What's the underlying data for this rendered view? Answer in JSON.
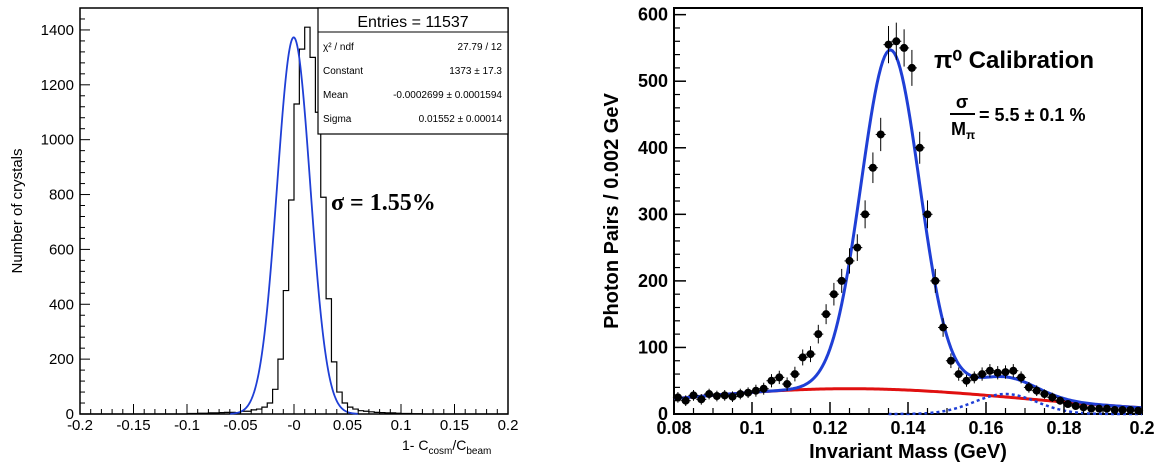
{
  "chart_data": [
    {
      "type": "histogram",
      "ylabel": "Number of crystals",
      "xlabel": {
        "prefix": "1- C",
        "sub1": "cosm",
        "mid": "/C",
        "sub2": "beam"
      },
      "xlim": [
        -0.2,
        0.2
      ],
      "ylim": [
        0,
        1480
      ],
      "x_ticks": [
        -0.2,
        -0.15,
        -0.1,
        -0.05,
        0,
        0.05,
        0.1,
        0.15,
        0.2
      ],
      "x_tick_labels": [
        "-0.2",
        "-0.15",
        "-0.1",
        "-0.05",
        "-0",
        "0.05",
        "0.1",
        "0.15",
        "0.2"
      ],
      "y_ticks": [
        0,
        200,
        400,
        600,
        800,
        1000,
        1200,
        1400
      ],
      "y_tick_labels": [
        "0",
        "200",
        "400",
        "600",
        "800",
        "1000",
        "1200",
        "1400"
      ],
      "stats_box": {
        "title": "Entries = 11537",
        "rows": [
          {
            "label": "χ² / ndf",
            "value": "27.79 / 12"
          },
          {
            "label": "Constant",
            "value": "1373 ± 17.3"
          },
          {
            "label": "Mean",
            "value": "-0.0002699 ± 0.0001594"
          },
          {
            "label": "Sigma",
            "value": "0.01552 ± 0.00014"
          }
        ]
      },
      "annotation": "σ = 1.55%",
      "fit": {
        "constant": 1373,
        "mean": -0.0002699,
        "sigma": 0.01552
      },
      "bin_width": 0.005,
      "bin_start": -0.2,
      "bin_values": [
        0,
        0,
        0,
        0,
        0,
        0,
        0,
        0,
        0,
        0,
        0,
        0,
        0,
        0,
        0,
        0,
        0,
        0,
        0,
        0,
        2,
        2,
        3,
        3,
        4,
        4,
        5,
        6,
        6,
        5,
        10,
        10,
        15,
        18,
        25,
        40,
        90,
        200,
        450,
        780,
        1130,
        1330,
        1410,
        1300,
        1100,
        790,
        420,
        190,
        80,
        40,
        25,
        18,
        12,
        10,
        8,
        6,
        5,
        4,
        4,
        3,
        2,
        2,
        1,
        1,
        0,
        0,
        0,
        0,
        0,
        0,
        0,
        0,
        0,
        0,
        0,
        0,
        0,
        0,
        0,
        0
      ],
      "colors": {
        "histogram": "#000000",
        "fit": "#1f3fd6"
      }
    },
    {
      "type": "scatter",
      "title": "π⁰ Calibration",
      "ylabel": "Photon Pairs / 0.002 GeV",
      "xlabel": "Invariant Mass (GeV)",
      "xlim": [
        0.08,
        0.2
      ],
      "ylim": [
        0,
        610
      ],
      "x_ticks": [
        0.08,
        0.1,
        0.12,
        0.14,
        0.16,
        0.18,
        0.2
      ],
      "x_tick_labels": [
        "0.08",
        "0.1",
        "0.12",
        "0.14",
        "0.16",
        "0.18",
        "0.2"
      ],
      "y_ticks": [
        0,
        100,
        200,
        300,
        400,
        500,
        600
      ],
      "y_tick_labels": [
        "0",
        "100",
        "200",
        "300",
        "400",
        "500",
        "600"
      ],
      "annotation": {
        "numerator": "σ",
        "denominator": "M",
        "denominator_sub": "π",
        "rhs": "= 5.5 ± 0.1 %"
      },
      "points": {
        "x": [
          0.081,
          0.083,
          0.085,
          0.087,
          0.089,
          0.091,
          0.093,
          0.095,
          0.097,
          0.099,
          0.101,
          0.103,
          0.105,
          0.107,
          0.109,
          0.111,
          0.113,
          0.115,
          0.117,
          0.119,
          0.121,
          0.123,
          0.125,
          0.127,
          0.129,
          0.131,
          0.133,
          0.135,
          0.137,
          0.139,
          0.141,
          0.143,
          0.145,
          0.147,
          0.149,
          0.151,
          0.153,
          0.155,
          0.157,
          0.159,
          0.161,
          0.163,
          0.165,
          0.167,
          0.169,
          0.171,
          0.173,
          0.175,
          0.177,
          0.179,
          0.181,
          0.183,
          0.185,
          0.187,
          0.189,
          0.191,
          0.193,
          0.195,
          0.197,
          0.199
        ],
        "y": [
          25,
          20,
          28,
          22,
          30,
          27,
          28,
          26,
          30,
          32,
          35,
          38,
          50,
          55,
          45,
          60,
          85,
          90,
          120,
          150,
          180,
          200,
          230,
          250,
          300,
          370,
          420,
          555,
          560,
          550,
          520,
          400,
          300,
          200,
          130,
          80,
          60,
          50,
          55,
          60,
          65,
          62,
          63,
          65,
          55,
          40,
          35,
          30,
          25,
          20,
          15,
          12,
          10,
          8,
          8,
          8,
          6,
          6,
          6,
          5
        ],
        "err": [
          8,
          8,
          8,
          8,
          8,
          8,
          8,
          8,
          8,
          8,
          9,
          9,
          10,
          10,
          10,
          11,
          12,
          12,
          14,
          15,
          17,
          18,
          19,
          20,
          21,
          23,
          25,
          28,
          28,
          28,
          27,
          24,
          21,
          18,
          14,
          11,
          10,
          9,
          9,
          10,
          10,
          10,
          10,
          10,
          9,
          8,
          8,
          7,
          7,
          6,
          5,
          5,
          4,
          4,
          4,
          4,
          4,
          4,
          4,
          4
        ]
      },
      "fit_signal": {
        "amplitude": 510,
        "mean": 0.1355,
        "sigma": 0.0075
      },
      "fit_background": {
        "peak": 38,
        "center": 0.125,
        "width": 0.045
      },
      "fit_eta_bump": {
        "amplitude": 30,
        "mean": 0.165,
        "sigma": 0.008
      },
      "colors": {
        "points": "#000000",
        "total_fit": "#1f3fd6",
        "background": "#e01010",
        "bump": "#1f3fd6"
      }
    }
  ]
}
